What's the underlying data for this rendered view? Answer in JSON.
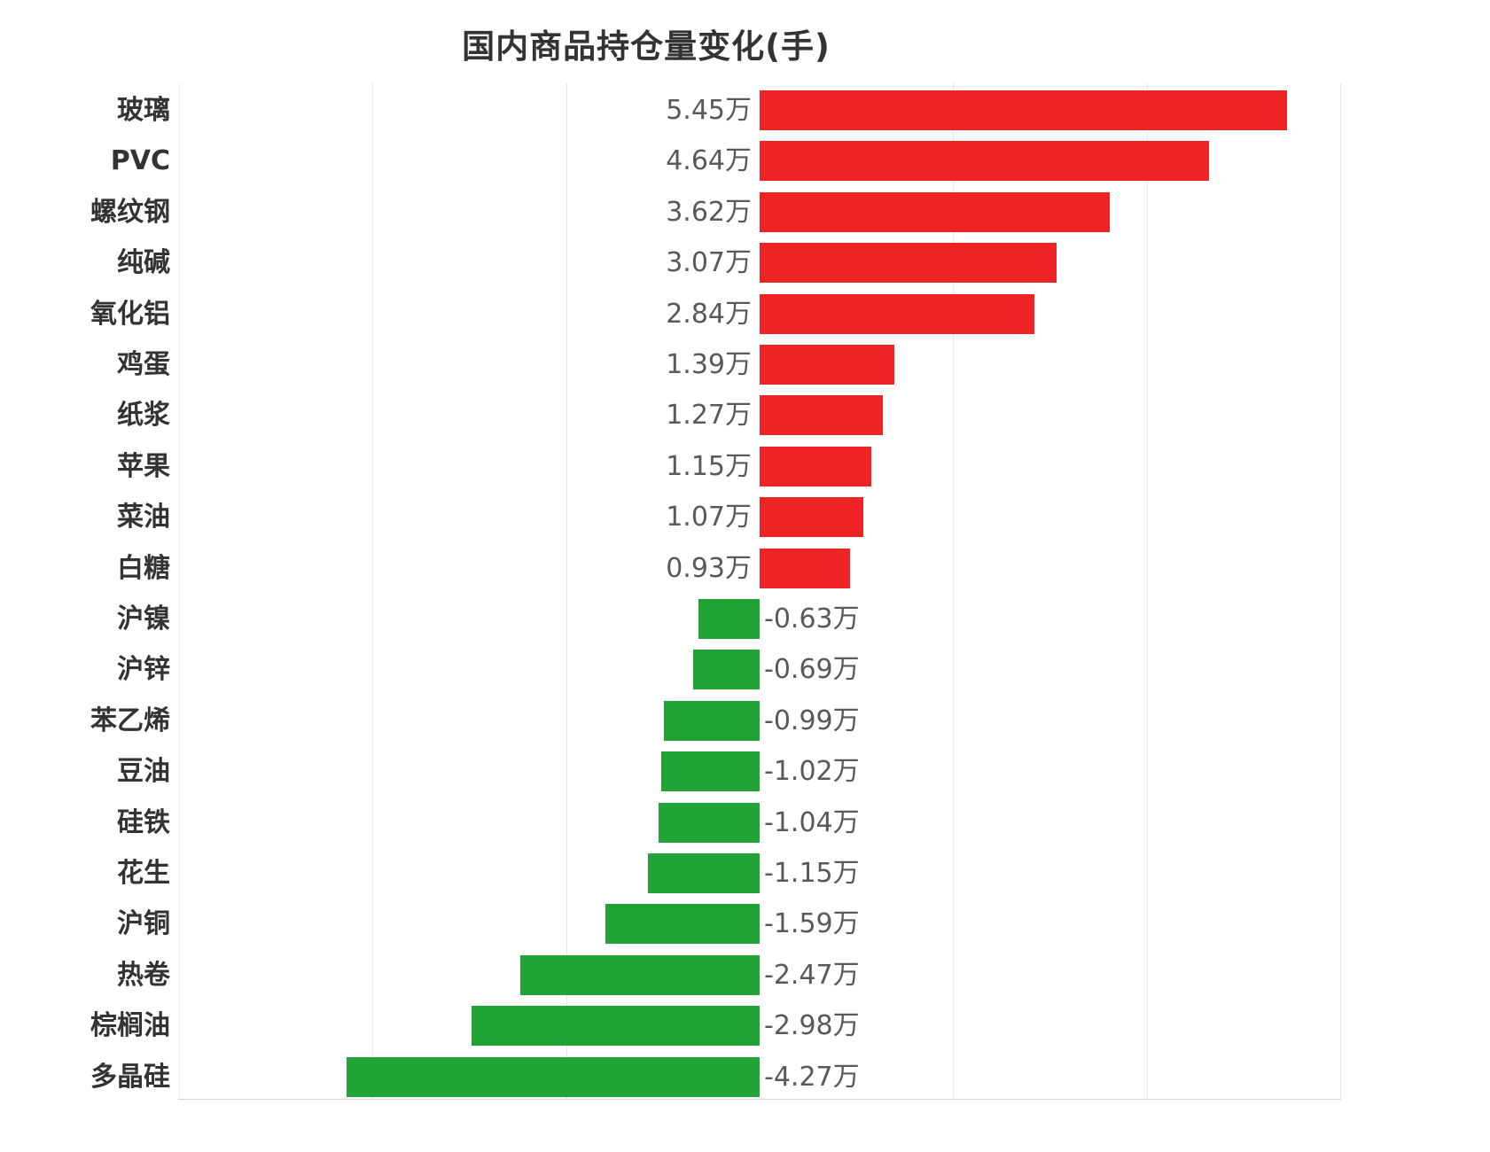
{
  "chart_data": {
    "type": "bar",
    "orientation": "horizontal",
    "title": "国内商品持仓量变化(手)",
    "unit": "万手",
    "categories": [
      "玻璃",
      "PVC",
      "螺纹钢",
      "纯碱",
      "氧化铝",
      "鸡蛋",
      "纸浆",
      "苹果",
      "菜油",
      "白糖",
      "沪镍",
      "沪锌",
      "苯乙烯",
      "豆油",
      "硅铁",
      "花生",
      "沪铜",
      "热卷",
      "棕榈油",
      "多晶硅"
    ],
    "values": [
      5.45,
      4.64,
      3.62,
      3.07,
      2.84,
      1.39,
      1.27,
      1.15,
      1.07,
      0.93,
      -0.63,
      -0.69,
      -0.99,
      -1.02,
      -1.04,
      -1.15,
      -1.59,
      -2.47,
      -2.98,
      -4.27
    ],
    "value_labels": [
      "5.45万",
      "4.64万",
      "3.62万",
      "3.07万",
      "2.84万",
      "1.39万",
      "1.27万",
      "1.15万",
      "1.07万",
      "0.93万",
      "-0.63万",
      "-0.69万",
      "-0.99万",
      "-1.02万",
      "-1.04万",
      "-1.15万",
      "-1.59万",
      "-2.47万",
      "-2.98万",
      "-4.27万"
    ],
    "xlim": [
      -6,
      6
    ],
    "grid_ticks_wan": [
      -6,
      -4,
      -2,
      2,
      4,
      6
    ],
    "grid": true,
    "legend": false
  },
  "colors": {
    "positive_bar": "#ee2424",
    "negative_bar": "#21a338",
    "gridline": "#e9e9e9",
    "axis_line": "#d4d4d4",
    "category_label": "#333333",
    "value_label": "#595959",
    "title": "#333333",
    "background": "#ffffff"
  }
}
